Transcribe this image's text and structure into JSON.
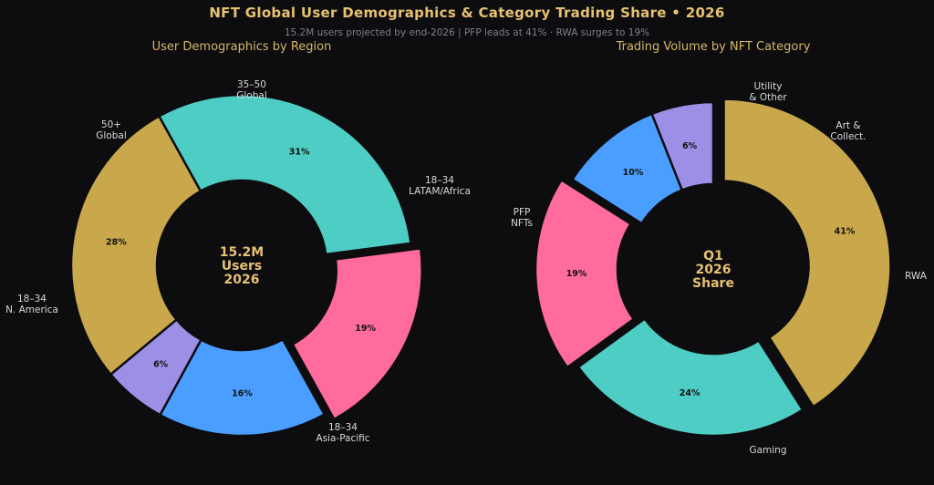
{
  "header": {
    "title": "NFT Global User Demographics & Category Trading Share  •  2026",
    "subtitle": "15.2M users projected by end-2026  |  PFP leads at 41% · RWA surges to 19%"
  },
  "chart_data": [
    {
      "type": "pie",
      "title": "User Demographics by Region",
      "center_text": [
        "15.2M",
        "Users",
        "2026"
      ],
      "slices": [
        {
          "label": [
            "18–34",
            "Asia-Pacific"
          ],
          "value": 31,
          "pct_label": "31%",
          "color": "#4ecdc4",
          "exploded": false
        },
        {
          "label": [
            "18–34",
            "LATAM/Africa"
          ],
          "value": 19,
          "pct_label": "19%",
          "color": "#ff6b9a",
          "exploded": true
        },
        {
          "label": [
            "35–50",
            "Global"
          ],
          "value": 16,
          "pct_label": "16%",
          "color": "#4a9eff",
          "exploded": false
        },
        {
          "label": [
            "50+",
            "Global"
          ],
          "value": 6,
          "pct_label": "6%",
          "color": "#9b8fe6",
          "exploded": false
        },
        {
          "label": [
            "18–34",
            "N. America"
          ],
          "value": 28,
          "pct_label": "28%",
          "color": "#c9a84c",
          "exploded": false
        }
      ]
    },
    {
      "type": "pie",
      "title": "Trading Volume by NFT Category",
      "center_text": [
        "Q1",
        "2026",
        "Share"
      ],
      "slices": [
        {
          "label": [
            "PFP",
            "NFTs"
          ],
          "value": 41,
          "pct_label": "41%",
          "color": "#c9a84c",
          "exploded": true
        },
        {
          "label": [
            "Gaming"
          ],
          "value": 24,
          "pct_label": "24%",
          "color": "#4ecdc4",
          "exploded": false
        },
        {
          "label": [
            "RWA"
          ],
          "value": 19,
          "pct_label": "19%",
          "color": "#ff6b9a",
          "exploded": true
        },
        {
          "label": [
            "Art &",
            "Collect."
          ],
          "value": 10,
          "pct_label": "10%",
          "color": "#4a9eff",
          "exploded": false
        },
        {
          "label": [
            "Utility",
            "& Other"
          ],
          "value": 6,
          "pct_label": "6%",
          "color": "#9b8fe6",
          "exploded": false
        }
      ]
    }
  ]
}
